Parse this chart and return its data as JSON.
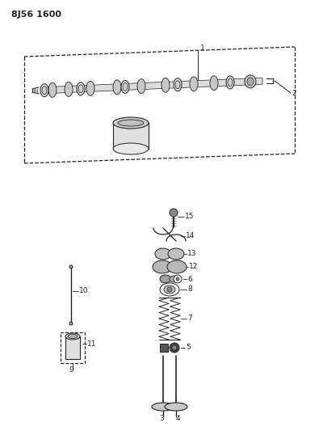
{
  "title": "8J56 1600",
  "bg_color": "#ffffff",
  "lc": "#222222",
  "fig_width": 4.0,
  "fig_height": 5.33,
  "dpi": 100
}
